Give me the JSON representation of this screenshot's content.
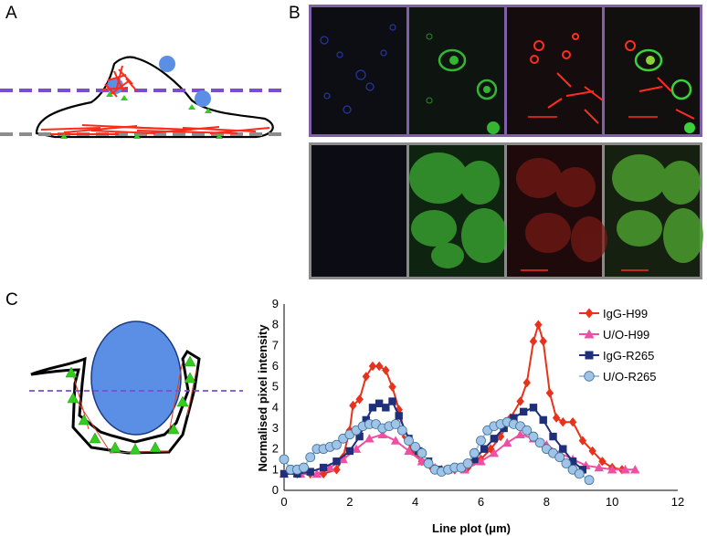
{
  "panels": {
    "a": "A",
    "b": "B",
    "c": "C"
  },
  "micrograph_rows": [
    {
      "frame_color": "#8060a8",
      "tiles": [
        {
          "channel": "blue",
          "bg": "#0d0e14"
        },
        {
          "channel": "green",
          "bg": "#0e1510"
        },
        {
          "channel": "red",
          "bg": "#150d0d"
        },
        {
          "channel": "merge",
          "bg": "#120f0f"
        }
      ]
    },
    {
      "frame_color": "#8a8a8a",
      "tiles": [
        {
          "channel": "blue",
          "bg": "#0c0d14"
        },
        {
          "channel": "green",
          "bg": "#0f2410"
        },
        {
          "channel": "red",
          "bg": "#1e0a0a"
        },
        {
          "channel": "merge",
          "bg": "#152010"
        }
      ]
    }
  ],
  "colors": {
    "purple_line": "#7c4dd2",
    "grey_line": "#8c8c8c",
    "nucleus": "#5b8fe6",
    "actin": "#ff2a1a",
    "marker": "#33cc1f"
  },
  "chart_data": {
    "type": "line",
    "xlabel": "Line plot (μm)",
    "ylabel": "Normalised pixel intensity",
    "xlim": [
      0,
      12
    ],
    "ylim": [
      0,
      9
    ],
    "xticks": [
      "0",
      "2",
      "4",
      "6",
      "8",
      "10",
      "12"
    ],
    "yticks": [
      "0",
      "1",
      "2",
      "3",
      "4",
      "5",
      "6",
      "7",
      "8",
      "9"
    ],
    "legend_position": "top-right",
    "series": [
      {
        "name": "IgG-H99",
        "color": "#e8321c",
        "marker": "diamond",
        "points": [
          [
            0,
            0.8
          ],
          [
            0.4,
            0.8
          ],
          [
            0.8,
            0.8
          ],
          [
            1.2,
            0.8
          ],
          [
            1.6,
            1
          ],
          [
            1.8,
            1.6
          ],
          [
            2,
            2.9
          ],
          [
            2.1,
            4.1
          ],
          [
            2.3,
            4.4
          ],
          [
            2.5,
            5.5
          ],
          [
            2.7,
            6
          ],
          [
            2.9,
            6
          ],
          [
            3.1,
            5.8
          ],
          [
            3.3,
            5
          ],
          [
            3.5,
            3.9
          ],
          [
            3.7,
            2.6
          ],
          [
            3.9,
            1.9
          ],
          [
            4.2,
            1.4
          ],
          [
            4.5,
            1.1
          ],
          [
            4.8,
            1
          ],
          [
            5.2,
            1
          ],
          [
            5.6,
            1.1
          ],
          [
            6,
            1.5
          ],
          [
            6.3,
            2
          ],
          [
            6.6,
            2.6
          ],
          [
            6.9,
            3.5
          ],
          [
            7.2,
            4.3
          ],
          [
            7.4,
            5.2
          ],
          [
            7.6,
            7.2
          ],
          [
            7.75,
            8
          ],
          [
            7.9,
            7.2
          ],
          [
            8.1,
            4.7
          ],
          [
            8.3,
            3.5
          ],
          [
            8.5,
            3.3
          ],
          [
            8.8,
            3.3
          ],
          [
            9.1,
            2.4
          ],
          [
            9.4,
            1.9
          ],
          [
            9.7,
            1.4
          ],
          [
            10,
            1.1
          ],
          [
            10.3,
            1
          ]
        ]
      },
      {
        "name": "U/O-H99",
        "color": "#f04ea2",
        "marker": "triangle",
        "points": [
          [
            0,
            0.8
          ],
          [
            0.5,
            0.8
          ],
          [
            1,
            0.8
          ],
          [
            1.4,
            1.1
          ],
          [
            1.8,
            1.5
          ],
          [
            2.2,
            2
          ],
          [
            2.6,
            2.5
          ],
          [
            3,
            2.7
          ],
          [
            3.4,
            2.4
          ],
          [
            3.8,
            1.9
          ],
          [
            4.2,
            1.4
          ],
          [
            4.6,
            1.1
          ],
          [
            5,
            1
          ],
          [
            5.5,
            1
          ],
          [
            6,
            1.4
          ],
          [
            6.4,
            1.8
          ],
          [
            6.8,
            2.3
          ],
          [
            7.2,
            2.7
          ],
          [
            7.6,
            2.5
          ],
          [
            8,
            2.2
          ],
          [
            8.4,
            1.8
          ],
          [
            8.8,
            1.5
          ],
          [
            9.2,
            1.2
          ],
          [
            9.6,
            1.1
          ],
          [
            10,
            1
          ],
          [
            10.4,
            1
          ],
          [
            10.7,
            1
          ]
        ]
      },
      {
        "name": "IgG-R265",
        "color": "#1f2f7a",
        "marker": "square",
        "points": [
          [
            0,
            0.8
          ],
          [
            0.4,
            0.8
          ],
          [
            0.8,
            0.9
          ],
          [
            1.2,
            1.1
          ],
          [
            1.6,
            1.4
          ],
          [
            2,
            1.9
          ],
          [
            2.3,
            2.6
          ],
          [
            2.5,
            3.4
          ],
          [
            2.7,
            4
          ],
          [
            2.9,
            4.2
          ],
          [
            3.1,
            4
          ],
          [
            3.3,
            4.3
          ],
          [
            3.5,
            3.6
          ],
          [
            3.8,
            2.5
          ],
          [
            4.1,
            1.9
          ],
          [
            4.4,
            1.4
          ],
          [
            4.7,
            1
          ],
          [
            5,
            1
          ],
          [
            5.4,
            1.1
          ],
          [
            5.8,
            1.5
          ],
          [
            6.1,
            2
          ],
          [
            6.4,
            2.5
          ],
          [
            6.7,
            3
          ],
          [
            7,
            3.5
          ],
          [
            7.3,
            3.8
          ],
          [
            7.6,
            4
          ],
          [
            7.9,
            3.4
          ],
          [
            8.2,
            2.6
          ],
          [
            8.5,
            2
          ],
          [
            8.8,
            1.4
          ],
          [
            9.1,
            1
          ]
        ]
      },
      {
        "name": "U/O-R265",
        "color": "#9fc4e8",
        "marker": "circle",
        "points": [
          [
            0,
            1.5
          ],
          [
            0.2,
            1
          ],
          [
            0.4,
            1
          ],
          [
            0.6,
            1.1
          ],
          [
            0.8,
            1.6
          ],
          [
            1,
            2
          ],
          [
            1.2,
            2
          ],
          [
            1.4,
            2.1
          ],
          [
            1.6,
            2.2
          ],
          [
            1.8,
            2.5
          ],
          [
            2,
            2.7
          ],
          [
            2.2,
            2.9
          ],
          [
            2.4,
            3.1
          ],
          [
            2.6,
            3.2
          ],
          [
            2.8,
            3.2
          ],
          [
            3,
            3
          ],
          [
            3.2,
            3.1
          ],
          [
            3.4,
            3.2
          ],
          [
            3.6,
            2.9
          ],
          [
            3.8,
            2.4
          ],
          [
            4,
            2.1
          ],
          [
            4.2,
            1.8
          ],
          [
            4.4,
            1.3
          ],
          [
            4.6,
            1
          ],
          [
            4.8,
            0.9
          ],
          [
            5,
            1
          ],
          [
            5.2,
            1.1
          ],
          [
            5.4,
            1.1
          ],
          [
            5.6,
            1.3
          ],
          [
            5.8,
            1.8
          ],
          [
            6,
            2.4
          ],
          [
            6.2,
            2.9
          ],
          [
            6.4,
            3.1
          ],
          [
            6.6,
            3.2
          ],
          [
            6.8,
            3.3
          ],
          [
            7,
            3.2
          ],
          [
            7.2,
            3.1
          ],
          [
            7.4,
            2.9
          ],
          [
            7.6,
            2.6
          ],
          [
            7.8,
            2.3
          ],
          [
            8,
            2
          ],
          [
            8.2,
            1.8
          ],
          [
            8.4,
            1.6
          ],
          [
            8.6,
            1.3
          ],
          [
            8.8,
            1
          ],
          [
            9,
            0.8
          ],
          [
            9.3,
            0.5
          ]
        ]
      }
    ]
  }
}
